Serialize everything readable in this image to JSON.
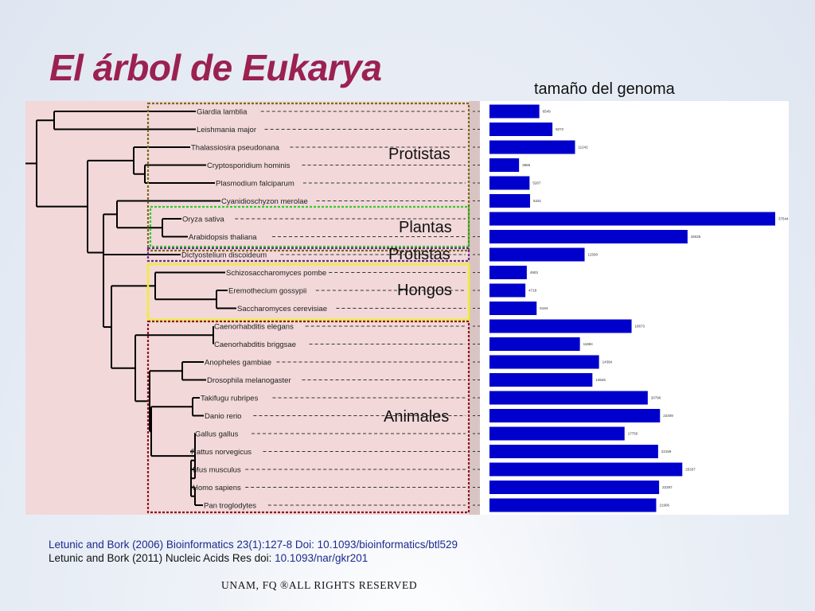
{
  "slide": {
    "title": "El árbol de Eukarya",
    "genome_heading": "tamaño del genoma"
  },
  "groups": [
    {
      "label": "Protistas",
      "color": "#7a6a1e"
    },
    {
      "label": "Plantas",
      "color": "#33cc33"
    },
    {
      "label": "Protistas",
      "color": "#6a2a8a"
    },
    {
      "label": "Hongos",
      "color": "#eeee33"
    },
    {
      "label": "Animales",
      "color": "#8a1a22"
    }
  ],
  "chart_data": {
    "type": "bar",
    "title": "tamaño del genoma",
    "categories": [
      "Giardia lamblia",
      "Leishmania major",
      "Thalassiosira pseudonana",
      "Cryptosporidium hominis",
      "Plasmodium falciparum",
      "Cyanidioschyzon merolae",
      "Oryza sativa",
      "Arabidopsis thaliana",
      "Dictyostelium discoideum",
      "Schizosaccharomyces pombe",
      "Eremothecium gossypii",
      "Saccharomyces cerevisiae",
      "Caenorhabditis elegans",
      "Caenorhabditis briggsae",
      "Anopheles gambiae",
      "Drosophila melanogaster",
      "Takifugu rubripes",
      "Danio rerio",
      "Gallus gallus",
      "Rattus norvegicus",
      "Mus musculus",
      "Homo sapiens",
      "Pan troglodytes"
    ],
    "values": [
      "6549",
      "8272",
      "11242",
      "3886",
      "5267",
      "5331",
      "37544",
      "26025",
      "12500",
      "4903",
      "4718",
      "6194",
      "18673",
      "11884",
      "14394",
      "13525",
      "20796",
      "22409",
      "17750",
      "22159",
      "25337",
      "22287",
      "21906"
    ],
    "xlim": [
      0,
      37544
    ],
    "bar_color": "#0000cc"
  },
  "citations": {
    "line1": "Letunic and Bork (2006) Bioinformatics 23(1):127-8 Doi: 10.1093/bioinformatics/btl529",
    "line2_prefix": "Letunic and Bork (2011) Nucleic Acids Res doi: ",
    "line2_doi": "10.1093/nar/gkr201"
  },
  "footer": "UNAM, FQ ®ALL RIGHTS RESERVED"
}
